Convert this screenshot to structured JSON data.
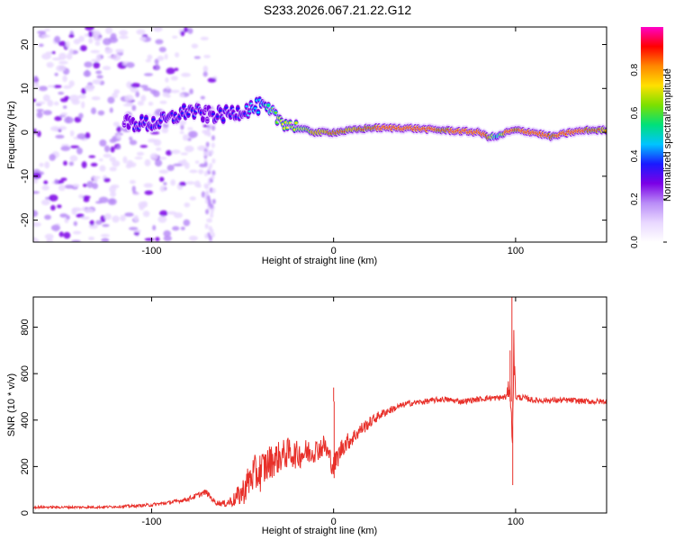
{
  "figure_title": "S233.2026.067.21.22.G12",
  "colors": {
    "snr_line": "#e8302a",
    "axis": "#000000",
    "colormap": [
      "#ffffff",
      "#e9d8ff",
      "#b98cf7",
      "#7b00e6",
      "#1a1aff",
      "#00c4ff",
      "#00e07a",
      "#7be000",
      "#ffe000",
      "#ff8800",
      "#ff0000",
      "#ff00c8"
    ]
  },
  "chart_data": [
    {
      "type": "heatmap",
      "title": "S233.2026.067.21.22.G12",
      "xlabel": "Height of straight line (km)",
      "ylabel": "Frequency (Hz)",
      "xlim": [
        -165,
        150
      ],
      "ylim": [
        -25,
        24
      ],
      "x_ticks": [
        -100,
        0,
        100
      ],
      "x_tick_labels": [
        "-100",
        "0",
        "100"
      ],
      "y_ticks": [
        -20,
        -10,
        0,
        10,
        20
      ],
      "y_tick_labels": [
        "-20",
        "-10",
        "0",
        "10",
        "20"
      ],
      "colorbar": {
        "label": "Normalized spectral amplitude",
        "range": [
          0,
          1
        ],
        "ticks": [
          0.0,
          0.2,
          0.4,
          0.6,
          0.8
        ],
        "tick_labels": [
          "0.0",
          "0.2",
          "0.4",
          "0.6",
          "0.8"
        ]
      },
      "ridge": {
        "description": "dominant frequency ridge",
        "height_km": [
          -115,
          -100,
          -90,
          -80,
          -70,
          -60,
          -50,
          -40,
          -30,
          -20,
          -10,
          0,
          10,
          20,
          40,
          60,
          80,
          85,
          90,
          95,
          100,
          110,
          120,
          130,
          140,
          150
        ],
        "freq_hz": [
          2,
          2,
          3,
          5,
          4,
          4,
          5,
          6,
          3,
          1,
          0,
          0,
          0.5,
          1,
          1,
          0.5,
          0,
          -1,
          -1,
          0,
          0.5,
          0,
          -1,
          0,
          0.5,
          0.5
        ],
        "amplitude": [
          0.3,
          0.35,
          0.35,
          0.4,
          0.3,
          0.35,
          0.4,
          0.45,
          0.7,
          0.75,
          0.8,
          0.9,
          0.85,
          0.9,
          0.95,
          0.9,
          0.95,
          0.9,
          0.5,
          0.95,
          0.9,
          0.95,
          0.9,
          0.95,
          0.9,
          0.85
        ]
      },
      "noise_region_km": [
        -165,
        -65
      ]
    },
    {
      "type": "line",
      "title": "",
      "xlabel": "Height of straight line (km)",
      "ylabel": "SNR (10 * v/v)",
      "xlim": [
        -165,
        150
      ],
      "ylim": [
        0,
        930
      ],
      "x_ticks": [
        -100,
        0,
        100
      ],
      "x_tick_labels": [
        "-100",
        "0",
        "100"
      ],
      "y_ticks": [
        0,
        200,
        400,
        600,
        800
      ],
      "y_tick_labels": [
        "0",
        "200",
        "400",
        "600",
        "800"
      ],
      "series": [
        {
          "name": "SNR",
          "x": [
            -165,
            -150,
            -130,
            -110,
            -100,
            -90,
            -80,
            -75,
            -72,
            -70,
            -65,
            -60,
            -55,
            -50,
            -45,
            -40,
            -35,
            -30,
            -25,
            -20,
            -15,
            -10,
            -5,
            0,
            5,
            10,
            15,
            20,
            25,
            30,
            40,
            50,
            60,
            70,
            80,
            85,
            90,
            95,
            97,
            98,
            99,
            100,
            105,
            110,
            120,
            130,
            140,
            150
          ],
          "y": [
            25,
            25,
            25,
            30,
            35,
            45,
            60,
            75,
            85,
            90,
            45,
            40,
            55,
            90,
            160,
            180,
            220,
            240,
            260,
            250,
            260,
            270,
            290,
            200,
            290,
            320,
            360,
            390,
            420,
            440,
            470,
            480,
            490,
            480,
            490,
            495,
            495,
            500,
            560,
            300,
            700,
            500,
            495,
            485,
            485,
            485,
            480,
            480
          ],
          "spread": [
            10,
            10,
            10,
            12,
            15,
            15,
            20,
            25,
            25,
            25,
            20,
            30,
            60,
            120,
            160,
            180,
            150,
            140,
            130,
            120,
            120,
            100,
            100,
            100,
            90,
            70,
            60,
            50,
            40,
            35,
            25,
            25,
            25,
            25,
            25,
            25,
            25,
            30,
            120,
            200,
            200,
            30,
            25,
            25,
            25,
            25,
            25,
            25
          ]
        }
      ]
    }
  ]
}
